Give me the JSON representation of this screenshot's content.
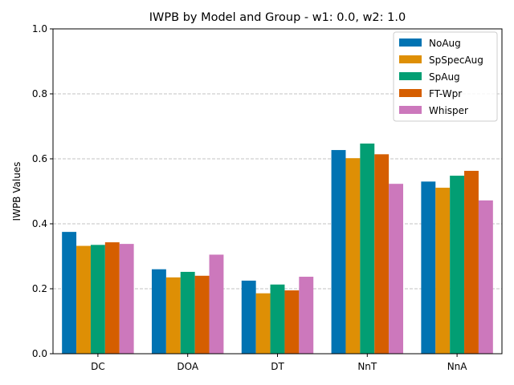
{
  "chart_data": {
    "type": "bar",
    "title": "IWPB by Model and Group - w1: 0.0, w2: 1.0",
    "xlabel": "",
    "ylabel": "IWPB Values",
    "ylim": [
      0,
      1.0
    ],
    "yticks": [
      "0.0",
      "0.2",
      "0.4",
      "0.6",
      "0.8",
      "1.0"
    ],
    "grid": "y-dashed",
    "legend_position": "top-right",
    "categories": [
      "DC",
      "DOA",
      "DT",
      "NnT",
      "NnA"
    ],
    "series": [
      {
        "name": "NoAug",
        "color": "#0173b2",
        "values": [
          0.375,
          0.26,
          0.225,
          0.627,
          0.53
        ]
      },
      {
        "name": "SpSpecAug",
        "color": "#de8f05",
        "values": [
          0.332,
          0.235,
          0.186,
          0.602,
          0.511
        ]
      },
      {
        "name": "SpAug",
        "color": "#029e73",
        "values": [
          0.335,
          0.252,
          0.213,
          0.647,
          0.548
        ]
      },
      {
        "name": "FT-Wpr",
        "color": "#d55e00",
        "values": [
          0.343,
          0.24,
          0.195,
          0.614,
          0.563
        ]
      },
      {
        "name": "Whisper",
        "color": "#cc78bc",
        "values": [
          0.338,
          0.305,
          0.237,
          0.523,
          0.472
        ]
      }
    ]
  }
}
